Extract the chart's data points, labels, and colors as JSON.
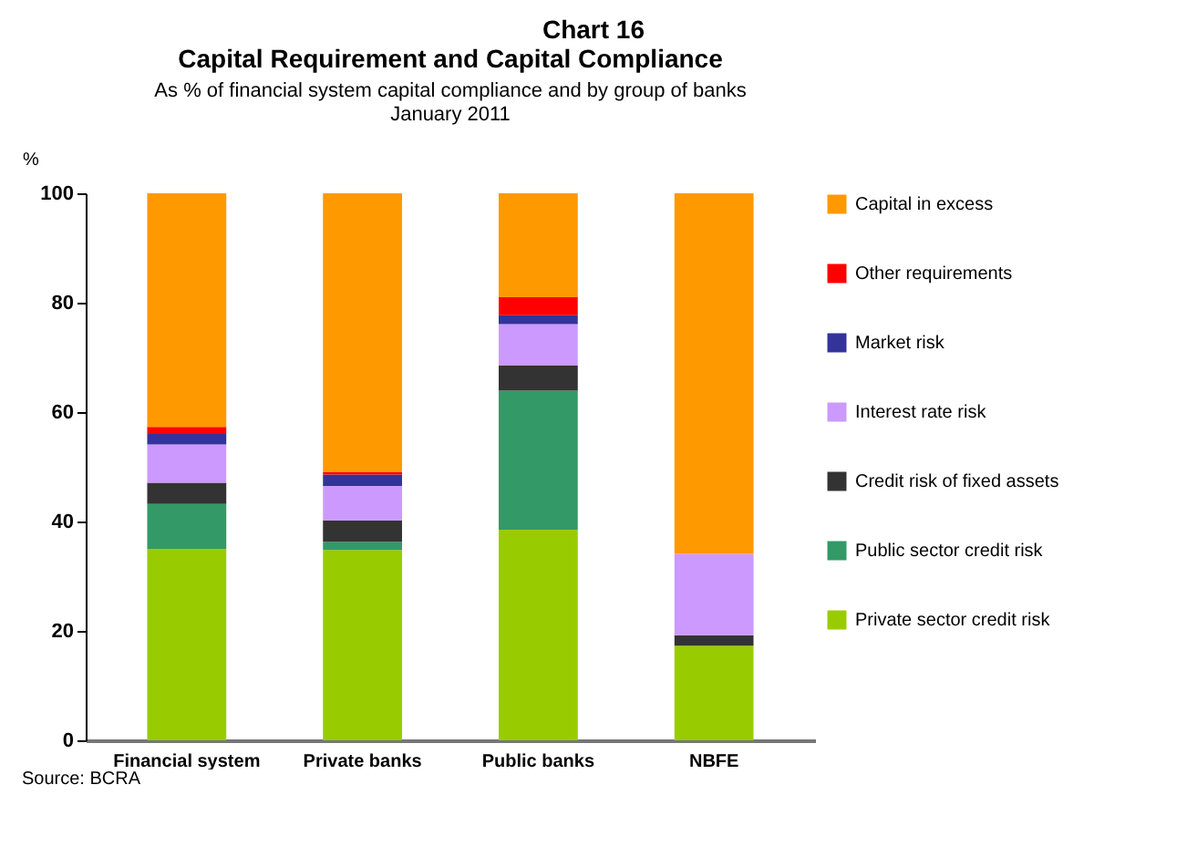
{
  "chart_data": {
    "type": "bar",
    "stacked": true,
    "title": "Capital Requirement and Capital Compliance",
    "subtitle": "As % of financial system capital compliance and by group of banks\nJanuary 2011",
    "ylabel": "%",
    "annotations": [
      "Chart 16",
      "Source: BCRA"
    ],
    "categories": [
      "Financial system",
      "Private banks",
      "Public banks",
      "NBFE"
    ],
    "series": [
      {
        "name": "Private sector credit risk",
        "color": "#99cc00",
        "values": [
          35.0,
          34.8,
          38.5,
          17.3
        ]
      },
      {
        "name": "Public sector credit risk",
        "color": "#339966",
        "values": [
          8.2,
          1.5,
          25.4,
          0
        ]
      },
      {
        "name": "Credit risk of fixed assets",
        "color": "#333333",
        "values": [
          3.9,
          3.9,
          4.6,
          1.9
        ]
      },
      {
        "name": "Interest rate risk",
        "color": "#cc99ff",
        "values": [
          7.0,
          6.3,
          7.6,
          14.9
        ]
      },
      {
        "name": "Market risk",
        "color": "#333399",
        "values": [
          1.9,
          2.1,
          1.6,
          0
        ]
      },
      {
        "name": "Other requirements",
        "color": "#ff0000",
        "values": [
          1.3,
          0.5,
          3.3,
          0
        ]
      },
      {
        "name": "Capital in excess",
        "color": "#ff9900",
        "values": [
          42.7,
          50.9,
          19.0,
          65.9
        ]
      }
    ],
    "ylim": [
      0,
      100
    ],
    "yticks": [
      0,
      20,
      40,
      60,
      80,
      100
    ],
    "grid": false,
    "legend": "right"
  }
}
